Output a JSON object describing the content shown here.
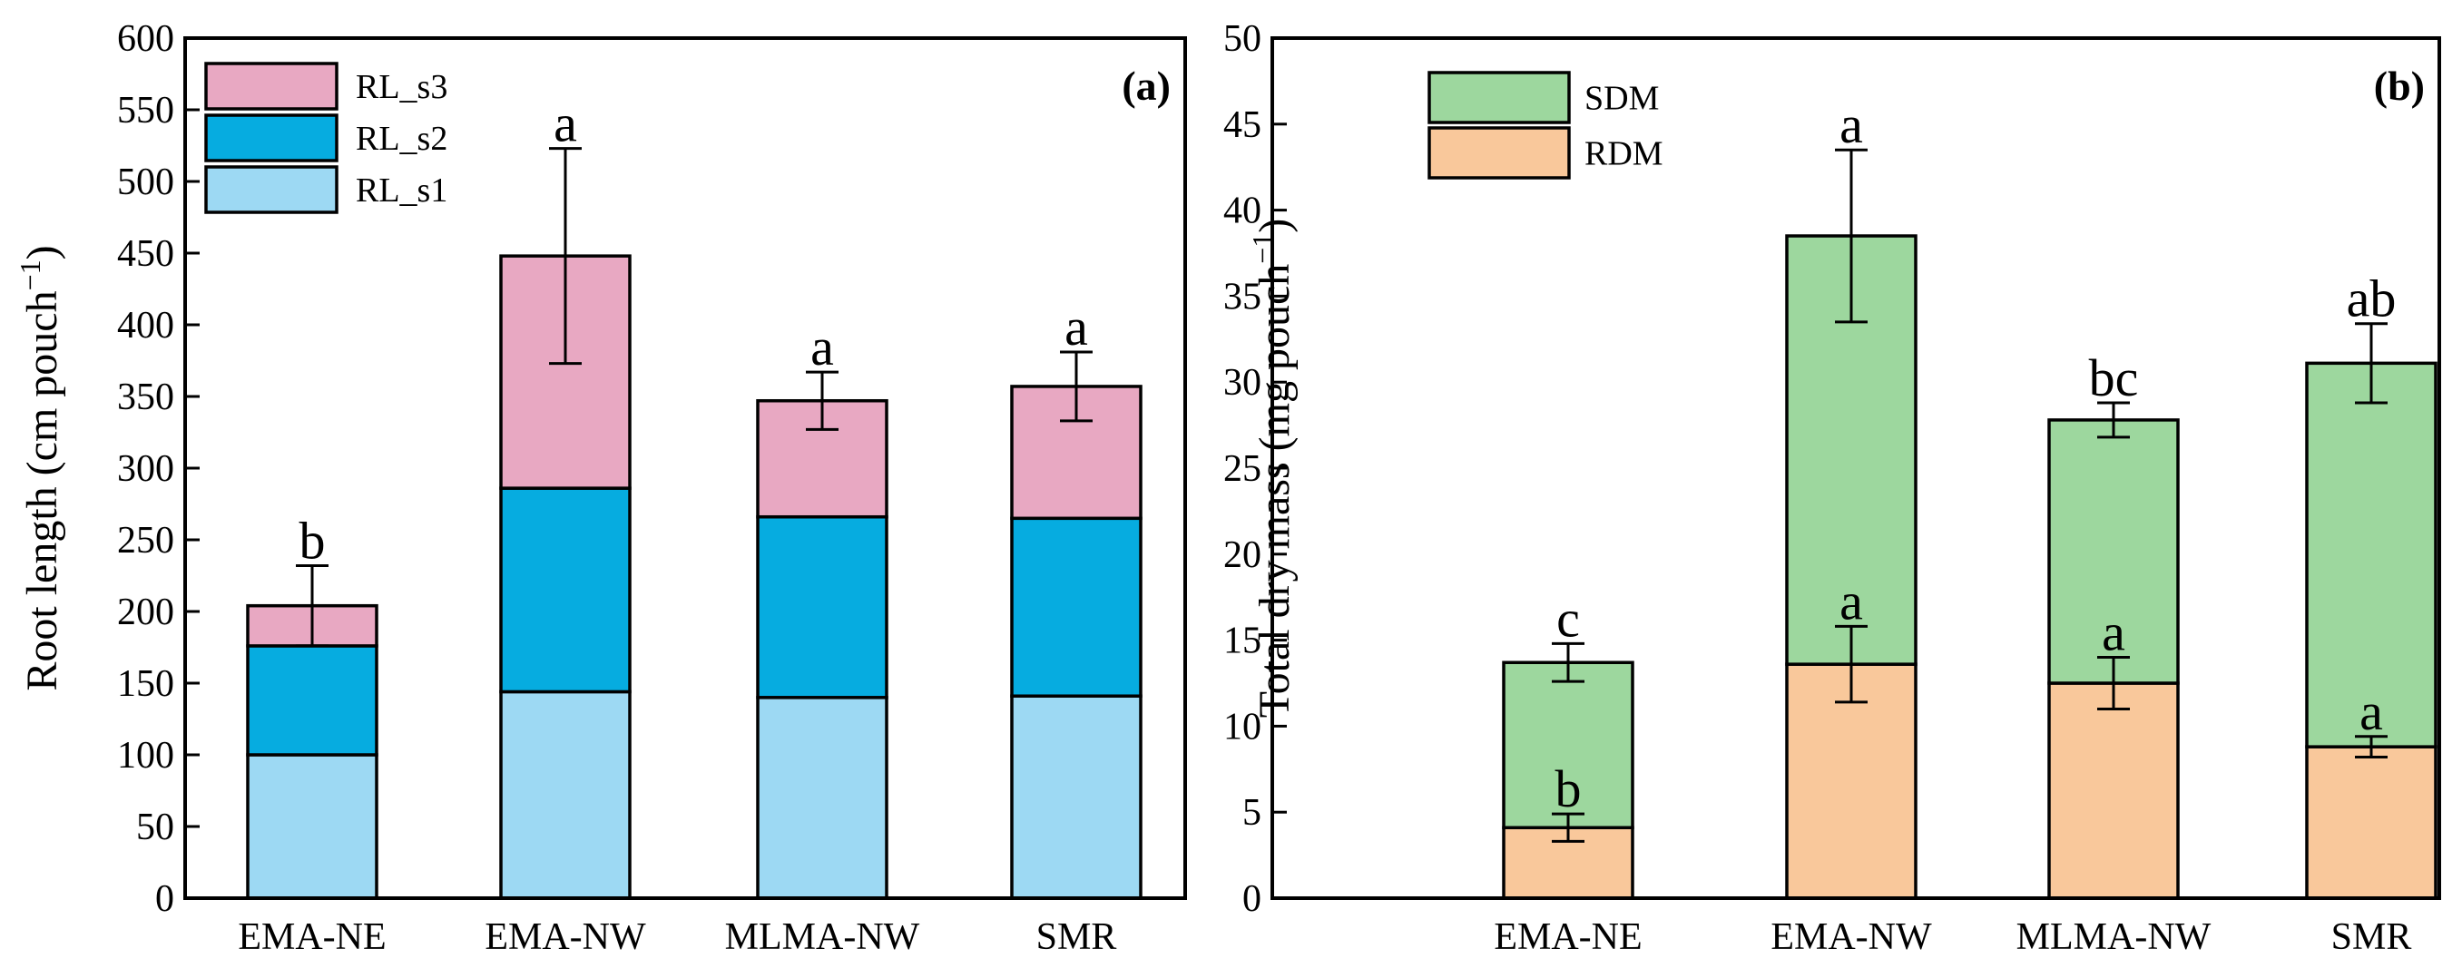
{
  "chart_data": [
    {
      "type": "bar",
      "stacked": true,
      "panel_label": "(a)",
      "ylabel": "Root length (cm pouch",
      "ylabel_sup": "−1",
      "ylabel_close": ")",
      "ylim": [
        0,
        600
      ],
      "yticks": [
        0,
        50,
        100,
        150,
        200,
        250,
        300,
        350,
        400,
        450,
        500,
        550,
        600
      ],
      "categories": [
        "EMA-NE",
        "EMA-NW",
        "MLMA-NW",
        "SMR"
      ],
      "series": [
        {
          "name": "RL_s1",
          "color": "#9dd9f3",
          "values": [
            100,
            144,
            140,
            141
          ]
        },
        {
          "name": "RL_s2",
          "color": "#06ace0",
          "values": [
            76,
            142,
            126,
            124
          ]
        },
        {
          "name": "RL_s3",
          "color": "#e8a8c2",
          "values": [
            28,
            162,
            81,
            92
          ]
        }
      ],
      "totals": [
        204,
        448,
        347,
        357
      ],
      "error": [
        28,
        75,
        20,
        24
      ],
      "letters": [
        "b",
        "a",
        "a",
        "a"
      ],
      "legend_position": "top-left",
      "grid": false
    },
    {
      "type": "bar",
      "stacked": true,
      "panel_label": "(b)",
      "ylabel": "Total dry mass (mg pouch",
      "ylabel_sup": "−1",
      "ylabel_close": ")",
      "ylim": [
        0,
        50
      ],
      "yticks": [
        0,
        5,
        10,
        15,
        20,
        25,
        30,
        35,
        40,
        45,
        50
      ],
      "categories": [
        "EMA-NE",
        "EMA-NW",
        "MLMA-NW",
        "SMR"
      ],
      "series": [
        {
          "name": "RDM",
          "color": "#f9c89b",
          "values": [
            4.1,
            13.6,
            12.5,
            8.8
          ],
          "error": [
            0.8,
            2.2,
            1.5,
            0.6
          ],
          "letters": [
            "b",
            "a",
            "a",
            "a"
          ]
        },
        {
          "name": "SDM",
          "color": "#9dd79e",
          "values": [
            9.6,
            24.9,
            15.3,
            22.3
          ]
        }
      ],
      "totals": [
        13.7,
        38.5,
        27.8,
        31.1
      ],
      "error": [
        1.1,
        5.0,
        1.0,
        2.3
      ],
      "letters": [
        "c",
        "a",
        "bc",
        "ab"
      ],
      "legend_position": "top-left",
      "grid": false
    }
  ]
}
